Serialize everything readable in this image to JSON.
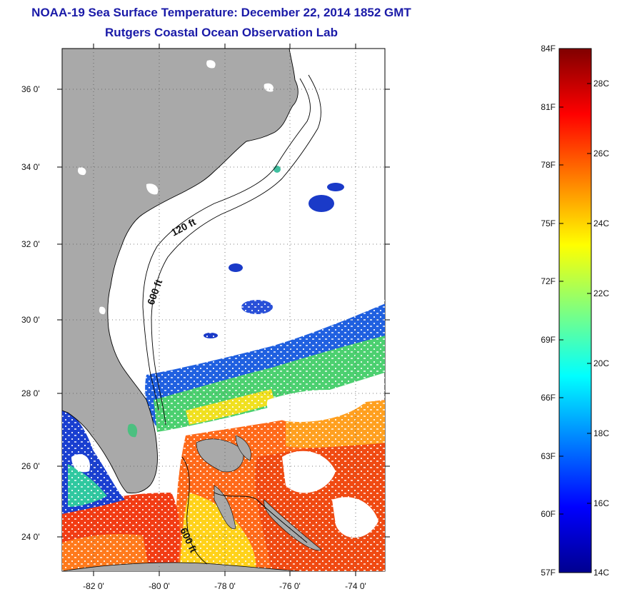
{
  "title": {
    "line1": "NOAA-19 Sea Surface Temperature:  December 22, 2014 1852 GMT",
    "line2": "Rutgers Coastal Ocean Observation Lab"
  },
  "map": {
    "lat_labels": [
      "36 0'",
      "34 0'",
      "32 0'",
      "30 0'",
      "28 0'",
      "26 0'",
      "24 0'"
    ],
    "lon_labels": [
      "-82 0'",
      "-80 0'",
      "-78 0'",
      "-76 0'",
      "-74 0'"
    ],
    "contour_labels": [
      "120 ft",
      "600 ft",
      "600 ft"
    ],
    "colors": {
      "land": "#a9a9a9",
      "cloud": "#ffffff",
      "grid": "#555555"
    }
  },
  "colorbar": {
    "fahrenheit_labels": [
      "84F",
      "81F",
      "78F",
      "75F",
      "72F",
      "69F",
      "66F",
      "63F",
      "60F",
      "57F"
    ],
    "celsius_labels": [
      "28C",
      "26C",
      "24C",
      "22C",
      "20C",
      "18C",
      "16C",
      "14C"
    ],
    "colormap": "jet"
  }
}
